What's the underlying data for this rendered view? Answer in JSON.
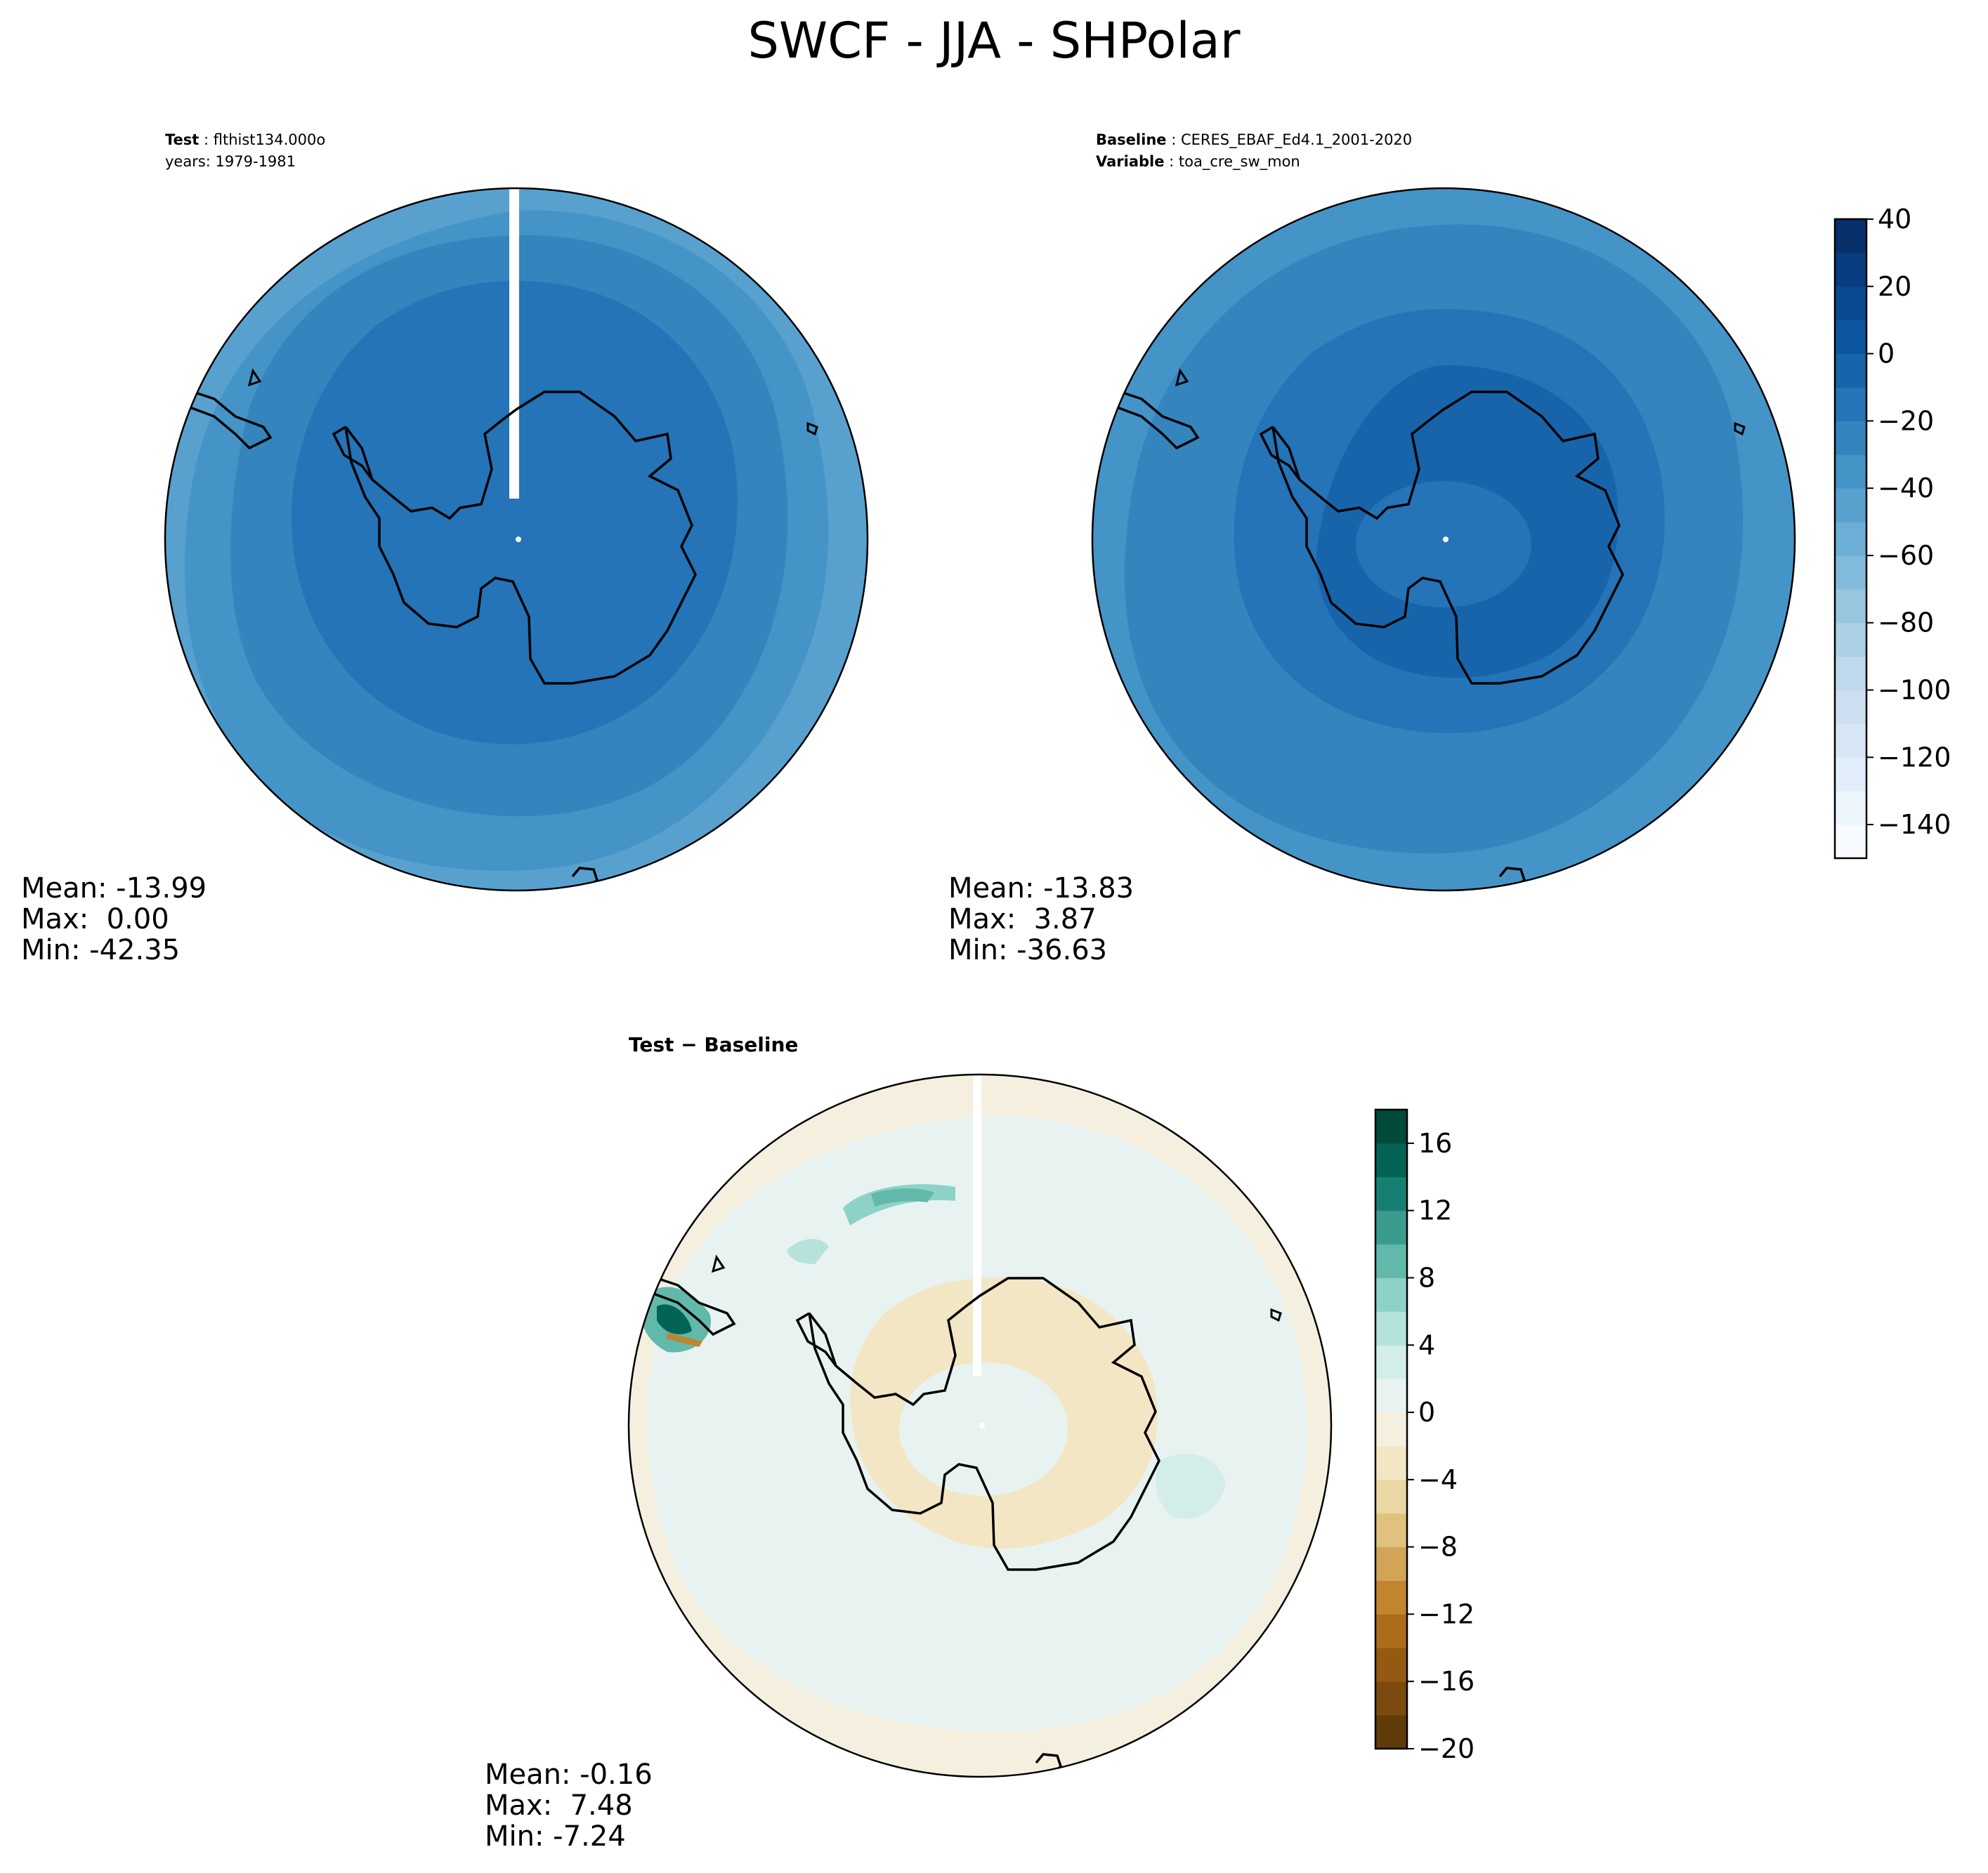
{
  "figure": {
    "title": "SWCF - JJA - SHPolar"
  },
  "panels": {
    "test": {
      "label_key": "Test",
      "name": "flthist134.000o",
      "years": "years: 1979-1981",
      "stats": {
        "mean": "Mean: -13.99",
        "max": "Max:  0.00",
        "min": "Min: -42.35"
      }
    },
    "baseline": {
      "label_key": "Baseline",
      "name": "CERES_EBAF_Ed4.1_2001-2020",
      "variable_key": "Variable",
      "variable": "toa_cre_sw_mon",
      "stats": {
        "mean": "Mean: -13.83",
        "max": "Max:  3.87",
        "min": "Min: -36.63"
      }
    },
    "diff": {
      "title": "Test − Baseline",
      "stats": {
        "mean": "Mean: -0.16",
        "max": "Max:  7.48",
        "min": "Min: -7.24"
      }
    }
  },
  "colorbar_top": {
    "ticks": [
      "40",
      "20",
      "0",
      "−20",
      "−40",
      "−60",
      "−80",
      "−100",
      "−120",
      "−140"
    ],
    "levels": [
      -150,
      -140,
      -130,
      -120,
      -110,
      -100,
      -90,
      -80,
      -70,
      -60,
      -50,
      -40,
      -30,
      -20,
      -10,
      0,
      10,
      20,
      30,
      40
    ],
    "colors_low_to_high": [
      "#f7fbff",
      "#ecf4fc",
      "#e2eef9",
      "#d7e6f5",
      "#ccdff1",
      "#bed8ec",
      "#acd0e6",
      "#98c6df",
      "#82badb",
      "#6caed6",
      "#58a1cf",
      "#4594c7",
      "#3484be",
      "#2474b7",
      "#1764ab",
      "#0c56a0",
      "#084b92",
      "#083d80",
      "#08306b"
    ]
  },
  "colorbar_diff": {
    "ticks": [
      "16",
      "12",
      "8",
      "4",
      "0",
      "−4",
      "−8",
      "−12",
      "−16",
      "−20"
    ],
    "levels": [
      -20,
      -18,
      -16,
      -14,
      -12,
      -10,
      -8,
      -6,
      -4,
      -2,
      0,
      2,
      4,
      6,
      8,
      10,
      12,
      14,
      16,
      18
    ],
    "colors_low_to_high": [
      "#603b0a",
      "#7a4a0e",
      "#955a12",
      "#ad6c1a",
      "#c1842f",
      "#d2a458",
      "#e0c27e",
      "#ebd7a3",
      "#f3e6c4",
      "#f5efdf",
      "#e8f3f1",
      "#d3ede8",
      "#b5e2db",
      "#8ed2c7",
      "#62b8ab",
      "#3b9b8e",
      "#177f72",
      "#036456",
      "#00493b"
    ]
  }
}
